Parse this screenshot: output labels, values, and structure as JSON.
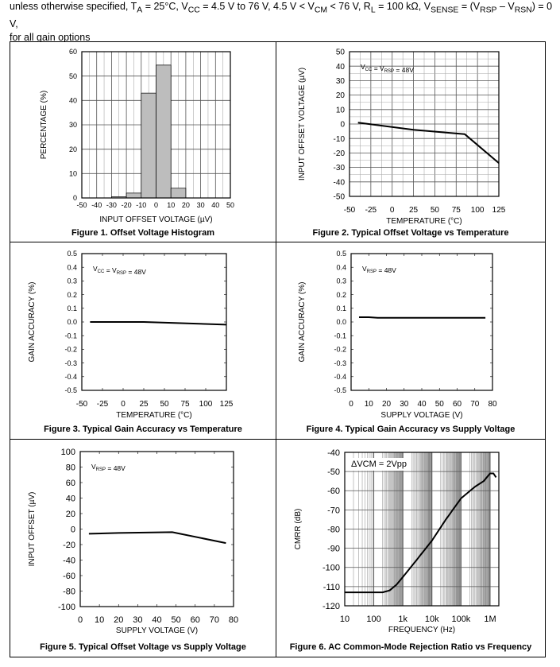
{
  "conditions": {
    "line1_prefix": "unless otherwise specified, T",
    "ta_sub": "A",
    "ta_val": " = 25°C, V",
    "vcc_sub": "CC",
    "vcc_val": " = 4.5 V to 76 V, 4.5 V < V",
    "vcm_sub": "CM",
    "vcm_val": " < 76 V, R",
    "rl_sub": "L",
    "rl_val": " = 100 kΩ, V",
    "vsense_sub": "SENSE",
    "vsense_val": " = (V",
    "vrsp_sub": "RSP",
    "vrsp_val": " – V",
    "vrsn_sub": "RSN",
    "vrsn_val": ") = 0 V,",
    "line2": "for all gain options"
  },
  "chart_data": [
    {
      "id": "fig1",
      "type": "bar",
      "title": "Figure 1. Offset Voltage Histogram",
      "xlabel": "INPUT OFFSET VOLTAGE (µV)",
      "ylabel": "PERCENTAGE (%)",
      "xlim": [
        -50,
        50
      ],
      "ylim": [
        0,
        60
      ],
      "xticks": [
        -50,
        -40,
        -30,
        -20,
        -10,
        0,
        10,
        20,
        30,
        40,
        50
      ],
      "yticks": [
        0,
        10,
        20,
        30,
        40,
        50,
        60
      ],
      "bins": [
        [
          -30,
          -20
        ],
        [
          -20,
          -10
        ],
        [
          -10,
          0
        ],
        [
          0,
          10
        ],
        [
          10,
          20
        ]
      ],
      "values": [
        0.5,
        2,
        43,
        54.5,
        4
      ],
      "grid": true
    },
    {
      "id": "fig2",
      "type": "line",
      "title": "Figure 2. Typical Offset Voltage vs Temperature",
      "xlabel": "TEMPERATURE (°C)",
      "ylabel": "INPUT OFFSET VOLTAGE (µV)",
      "annotation": "V",
      "annotation_sub1": "CC",
      "annotation_mid": " = V",
      "annotation_sub2": "RSP",
      "annotation_end": " = 48V",
      "xlim": [
        -50,
        125
      ],
      "ylim": [
        -50,
        50
      ],
      "xticks": [
        -50,
        -25,
        0,
        25,
        50,
        75,
        100,
        125
      ],
      "yticks": [
        -50,
        -40,
        -30,
        -20,
        -10,
        0,
        10,
        20,
        30,
        40,
        50
      ],
      "x": [
        -40,
        25,
        85,
        125
      ],
      "y": [
        1,
        -4,
        -7,
        -27
      ],
      "grid": true
    },
    {
      "id": "fig3",
      "type": "line",
      "title": "Figure 3. Typical Gain Accuracy vs Temperature",
      "xlabel": "TEMPERATURE (°C)",
      "ylabel": "GAIN ACCURACY (%)",
      "annotation": "V",
      "annotation_sub1": "CC",
      "annotation_mid": " = V",
      "annotation_sub2": "RSP",
      "annotation_end": " = 48V",
      "xlim": [
        -50,
        125
      ],
      "ylim": [
        -0.5,
        0.5
      ],
      "xticks": [
        -50,
        -25,
        0,
        25,
        50,
        75,
        100,
        125
      ],
      "yticks": [
        -0.5,
        -0.4,
        -0.3,
        -0.2,
        -0.1,
        0.0,
        0.1,
        0.2,
        0.3,
        0.4,
        0.5
      ],
      "x": [
        -40,
        25,
        125
      ],
      "y": [
        0,
        0,
        -0.02
      ],
      "grid": false
    },
    {
      "id": "fig4",
      "type": "line",
      "title": "Figure 4. Typical Gain Accuracy vs Supply Voltage",
      "xlabel": "SUPPLY VOLTAGE (V)",
      "ylabel": "GAIN ACCURACY (%)",
      "annotation": "V",
      "annotation_sub1": "",
      "annotation_mid": "",
      "annotation_sub2": "RSP",
      "annotation_end": " = 48V",
      "xlim": [
        0,
        80
      ],
      "ylim": [
        -0.5,
        0.5
      ],
      "xticks": [
        0,
        10,
        20,
        30,
        40,
        50,
        60,
        70,
        80
      ],
      "yticks": [
        -0.5,
        -0.4,
        -0.3,
        -0.2,
        -0.1,
        0.0,
        0.1,
        0.2,
        0.3,
        0.4,
        0.5
      ],
      "x": [
        4.5,
        10,
        15,
        76
      ],
      "y": [
        0.035,
        0.035,
        0.03,
        0.03
      ],
      "grid": false
    },
    {
      "id": "fig5",
      "type": "line",
      "title": "Figure 5. Typical Offset Voltage vs Supply Voltage",
      "xlabel": "SUPPLY VOLTAGE (V)",
      "ylabel": "INPUT OFFSET (µV)",
      "annotation": "V",
      "annotation_sub1": "",
      "annotation_mid": "",
      "annotation_sub2": "RSP",
      "annotation_end": " = 48V",
      "xlim": [
        0,
        80
      ],
      "ylim": [
        -100,
        100
      ],
      "xticks": [
        0,
        10,
        20,
        30,
        40,
        50,
        60,
        70,
        80
      ],
      "yticks": [
        -100,
        -80,
        -60,
        -40,
        -20,
        0,
        20,
        40,
        60,
        80,
        100
      ],
      "x": [
        4.5,
        20,
        48,
        76
      ],
      "y": [
        -6,
        -5,
        -4,
        -18
      ],
      "grid": false
    },
    {
      "id": "fig6",
      "type": "line",
      "title": "Figure 6. AC Common-Mode Rejection Ratio vs Frequency",
      "xlabel": "FREQUENCY (Hz)",
      "ylabel": "CMRR (dB)",
      "annotation": "ΔVCM = 2Vpp",
      "xscale": "log",
      "xlim": [
        10,
        2000000
      ],
      "ylim": [
        -120,
        -40
      ],
      "xtick_values": [
        10,
        100,
        1000,
        10000,
        100000,
        1000000
      ],
      "xtick_labels": [
        "10",
        "100",
        "1k",
        "10k",
        "100k",
        "1M"
      ],
      "yticks": [
        -120,
        -110,
        -100,
        -90,
        -80,
        -70,
        -60,
        -50,
        -40
      ],
      "x": [
        10,
        50,
        200,
        350,
        600,
        1000,
        3000,
        10000,
        30000,
        100000,
        300000,
        600000,
        1000000,
        1300000,
        1600000
      ],
      "y": [
        -113,
        -113,
        -113,
        -112,
        -109,
        -105,
        -96,
        -86,
        -75,
        -64,
        -58,
        -55,
        -51,
        -51,
        -53
      ],
      "grid": true
    }
  ]
}
